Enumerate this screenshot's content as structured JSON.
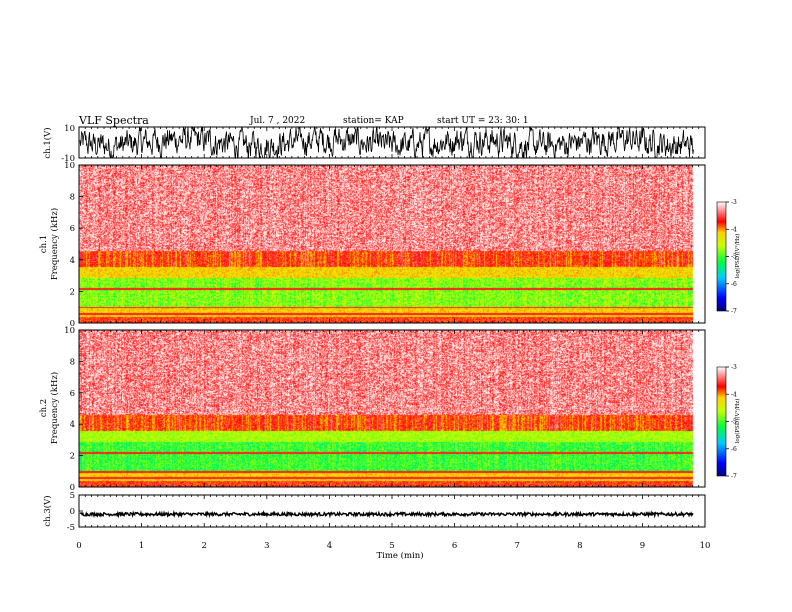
{
  "header": {
    "title": "VLF Spectra",
    "date": "Jul. 7 , 2022",
    "station": "station= KAP",
    "start": "start UT =  23: 30: 1"
  },
  "chart_data": [
    {
      "id": "ch1-waveform",
      "type": "line",
      "ylabel": "ch.1(V)",
      "ylim": [
        -10,
        10
      ],
      "yticks": [
        "10",
        "-10"
      ],
      "xlim": [
        0,
        10
      ]
    },
    {
      "id": "ch1-spectrogram",
      "type": "heatmap",
      "ylabel": "ch.1\nFrequency (kHz)",
      "ylabel_line1": "ch.1",
      "ylabel_line2": "Frequency (kHz)",
      "ylim": [
        0,
        10
      ],
      "yticks": [
        "0",
        "2",
        "4",
        "6",
        "8",
        "10"
      ],
      "xlim": [
        0,
        10
      ],
      "colorbar": {
        "label": "log(PSD)(V²/Hz)",
        "range": [
          -7,
          -3
        ],
        "ticks": [
          "-3",
          "-4",
          "-5",
          "-6",
          "-7"
        ]
      }
    },
    {
      "id": "ch2-spectrogram",
      "type": "heatmap",
      "ylabel_line1": "ch.2",
      "ylabel_line2": "Frequency (kHz)",
      "ylim": [
        0,
        10
      ],
      "yticks": [
        "0",
        "2",
        "4",
        "6",
        "8",
        "10"
      ],
      "xlim": [
        0,
        10
      ],
      "colorbar": {
        "label": "log(PSD)(V²/Hz)",
        "range": [
          -7,
          -3
        ],
        "ticks": [
          "-3",
          "-4",
          "-5",
          "-6",
          "-7"
        ]
      }
    },
    {
      "id": "ch3-waveform",
      "type": "line",
      "ylabel": "ch.3(V)",
      "ylim": [
        -5,
        5
      ],
      "yticks": [
        "5",
        "0",
        "-5"
      ],
      "xlim": [
        0,
        10
      ],
      "xlabel": "Time (min)",
      "xticks": [
        "0",
        "1",
        "2",
        "3",
        "4",
        "5",
        "6",
        "7",
        "8",
        "9",
        "10"
      ]
    }
  ],
  "colors": {
    "colormap": [
      "#0000ff",
      "#00ffff",
      "#00ff00",
      "#ffff00",
      "#ff0000",
      "#ffffff"
    ],
    "trace": "#000000"
  }
}
